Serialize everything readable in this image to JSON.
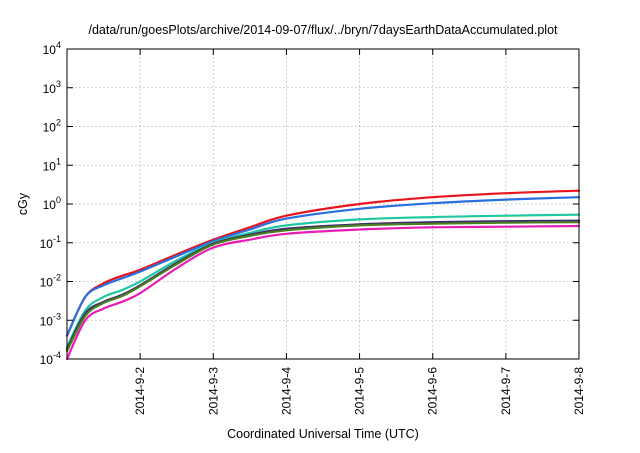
{
  "chart_data": {
    "type": "line",
    "title": "/data/run/goesPlots/archive/2014-09-07/flux/../bryn/7daysEarthDataAccumulated.plot",
    "xlabel": "Coordinated Universal Time (UTC)",
    "ylabel": "cGy",
    "y_scale": "log",
    "grid": true,
    "legend": "none",
    "xlim": [
      "2014-09-01",
      "2014-09-08"
    ],
    "ylim": [
      0.0001,
      10000
    ],
    "x_ticks": [
      "2014-9-2",
      "2014-9-3",
      "2014-9-4",
      "2014-9-5",
      "2014-9-6",
      "2014-9-7",
      "2014-9-8"
    ],
    "y_ticks": [
      {
        "value": 0.0001,
        "base": "10",
        "exp": "-4"
      },
      {
        "value": 0.001,
        "base": "10",
        "exp": "-3"
      },
      {
        "value": 0.01,
        "base": "10",
        "exp": "-2"
      },
      {
        "value": 0.1,
        "base": "10",
        "exp": "-1"
      },
      {
        "value": 1,
        "base": "10",
        "exp": "0"
      },
      {
        "value": 10,
        "base": "10",
        "exp": "1"
      },
      {
        "value": 100,
        "base": "10",
        "exp": "2"
      },
      {
        "value": 1000,
        "base": "10",
        "exp": "3"
      },
      {
        "value": 10000,
        "base": "10",
        "exp": "4"
      }
    ],
    "series": [
      {
        "color": "#e8141c",
        "x": [
          "2014-09-01",
          "2014-09-01 06:00",
          "2014-09-01 12:00",
          "2014-09-01 18:00",
          "2014-09-02",
          "2014-09-02 12:00",
          "2014-09-03",
          "2014-09-03 12:00",
          "2014-09-04",
          "2014-09-05",
          "2014-09-06",
          "2014-09-07",
          "2014-09-08"
        ],
        "y": [
          0.0004,
          0.004,
          0.009,
          0.014,
          0.02,
          0.05,
          0.12,
          0.25,
          0.5,
          1.0,
          1.5,
          1.9,
          2.2
        ]
      },
      {
        "color": "#2a6fe0",
        "x": [
          "2014-09-01",
          "2014-09-01 06:00",
          "2014-09-01 12:00",
          "2014-09-01 18:00",
          "2014-09-02",
          "2014-09-02 12:00",
          "2014-09-03",
          "2014-09-03 12:00",
          "2014-09-04",
          "2014-09-05",
          "2014-09-06",
          "2014-09-07",
          "2014-09-08"
        ],
        "y": [
          0.0004,
          0.004,
          0.008,
          0.012,
          0.018,
          0.045,
          0.11,
          0.22,
          0.42,
          0.75,
          1.05,
          1.3,
          1.5
        ]
      },
      {
        "color": "#1ec8a0",
        "x": [
          "2014-09-01",
          "2014-09-01 06:00",
          "2014-09-01 12:00",
          "2014-09-01 18:00",
          "2014-09-02",
          "2014-09-02 12:00",
          "2014-09-03",
          "2014-09-03 12:00",
          "2014-09-04",
          "2014-09-05",
          "2014-09-06",
          "2014-09-07",
          "2014-09-08"
        ],
        "y": [
          0.0002,
          0.0018,
          0.004,
          0.006,
          0.01,
          0.035,
          0.1,
          0.18,
          0.28,
          0.4,
          0.46,
          0.5,
          0.53
        ]
      },
      {
        "color": "#3a2a6e",
        "x": [
          "2014-09-01",
          "2014-09-01 06:00",
          "2014-09-01 12:00",
          "2014-09-01 18:00",
          "2014-09-02",
          "2014-09-02 12:00",
          "2014-09-03",
          "2014-09-03 12:00",
          "2014-09-04",
          "2014-09-05",
          "2014-09-06",
          "2014-09-07",
          "2014-09-08"
        ],
        "y": [
          0.00018,
          0.0015,
          0.003,
          0.0045,
          0.008,
          0.03,
          0.095,
          0.16,
          0.23,
          0.3,
          0.34,
          0.36,
          0.37
        ]
      },
      {
        "color": "#4a7e1e",
        "x": [
          "2014-09-01",
          "2014-09-01 06:00",
          "2014-09-01 12:00",
          "2014-09-01 18:00",
          "2014-09-02",
          "2014-09-02 12:00",
          "2014-09-03",
          "2014-09-03 12:00",
          "2014-09-04",
          "2014-09-05",
          "2014-09-06",
          "2014-09-07",
          "2014-09-08"
        ],
        "y": [
          0.00016,
          0.0013,
          0.0028,
          0.0042,
          0.0075,
          0.028,
          0.09,
          0.15,
          0.21,
          0.28,
          0.31,
          0.33,
          0.34
        ]
      },
      {
        "color": "#e61eb4",
        "x": [
          "2014-09-01",
          "2014-09-01 06:00",
          "2014-09-01 12:00",
          "2014-09-01 18:00",
          "2014-09-02",
          "2014-09-02 12:00",
          "2014-09-03",
          "2014-09-03 12:00",
          "2014-09-04",
          "2014-09-05",
          "2014-09-06",
          "2014-09-07",
          "2014-09-08"
        ],
        "y": [
          0.0001,
          0.001,
          0.002,
          0.003,
          0.005,
          0.022,
          0.075,
          0.12,
          0.17,
          0.22,
          0.25,
          0.26,
          0.27
        ]
      }
    ]
  }
}
